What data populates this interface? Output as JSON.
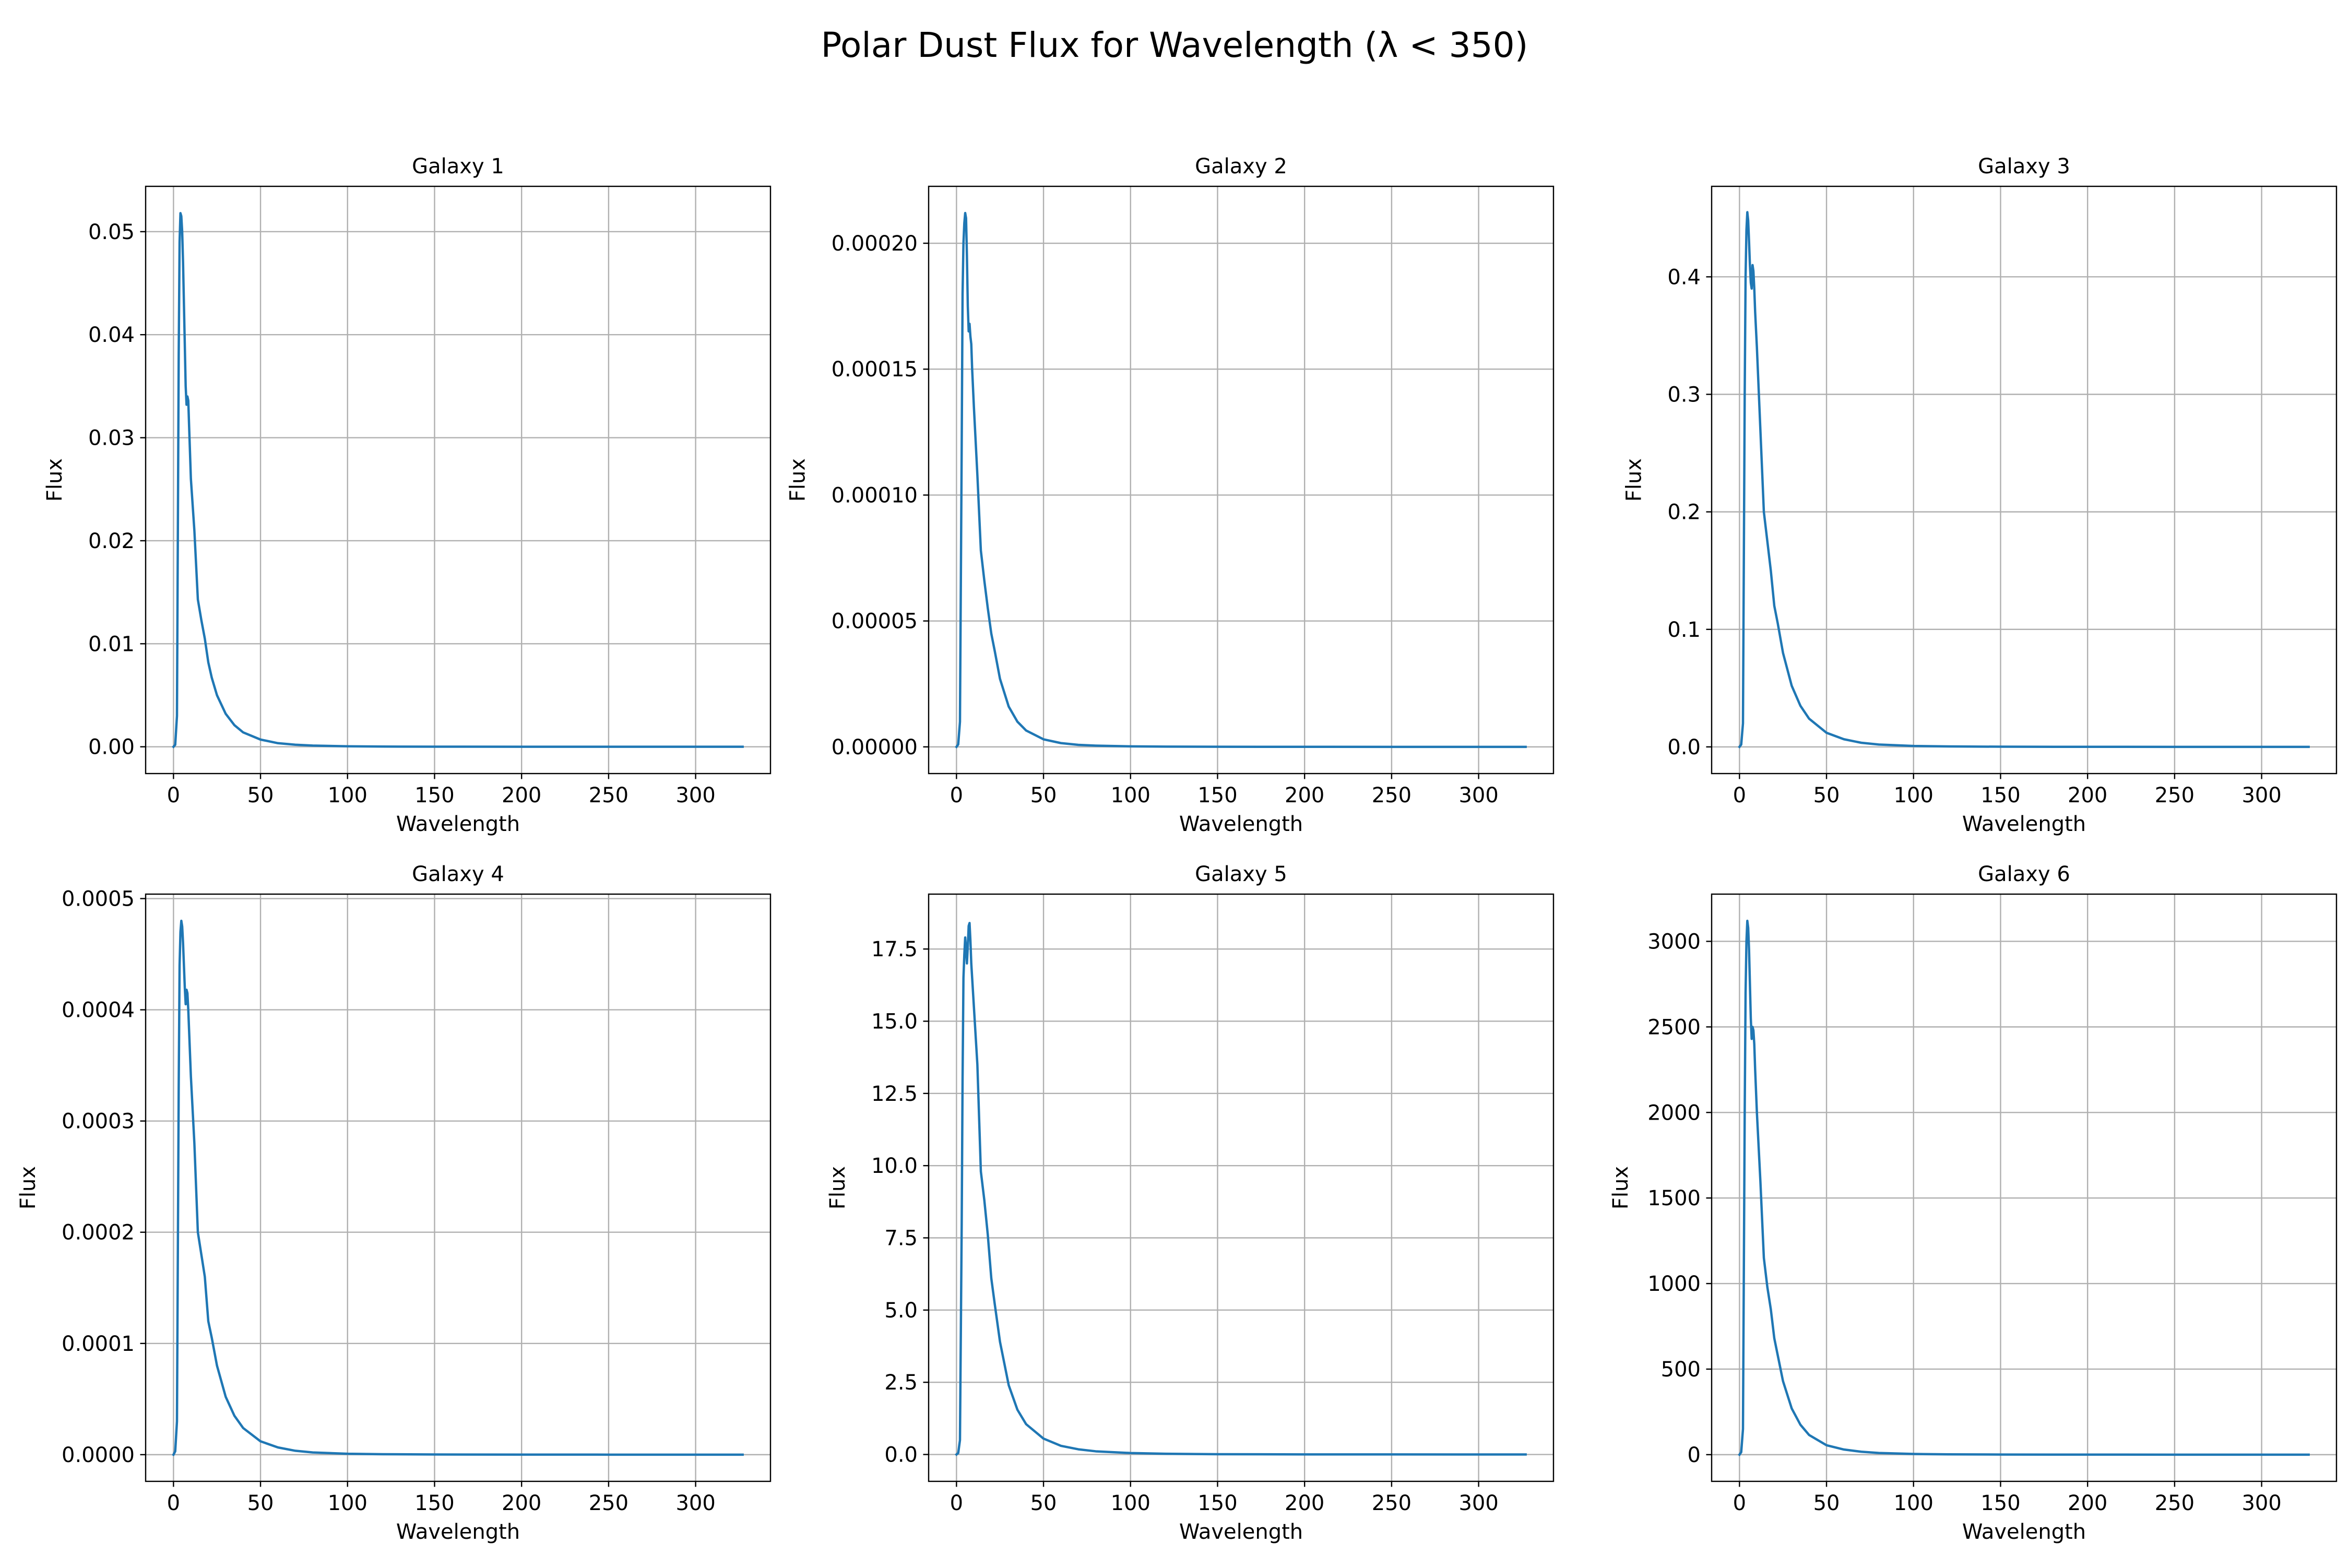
{
  "figure_title": "Polar Dust Flux for Wavelength (λ < 350)",
  "colors": {
    "line": "#1f77b4",
    "grid": "#b0b0b0",
    "axes": "#000000"
  },
  "chart_data": [
    {
      "type": "line",
      "title": "Galaxy 1",
      "xlabel": "Wavelength",
      "ylabel": "Flux",
      "grid": true,
      "xlim": [
        -16,
        343
      ],
      "ylim": [
        -0.0026,
        0.0544
      ],
      "xticks": [
        0,
        50,
        100,
        150,
        200,
        250,
        300
      ],
      "yticks": [
        0.0,
        0.01,
        0.02,
        0.03,
        0.04,
        0.05
      ],
      "ytick_labels": [
        "0.00",
        "0.01",
        "0.02",
        "0.03",
        "0.04",
        "0.05"
      ],
      "series": [
        {
          "x": [
            0,
            1,
            2,
            3,
            3.5,
            4,
            4.5,
            5,
            5.5,
            6,
            6.5,
            7,
            7.5,
            8,
            8.5,
            9,
            10,
            12,
            14,
            16,
            18,
            20,
            22,
            25,
            30,
            35,
            40,
            50,
            60,
            70,
            80,
            100,
            120,
            150,
            200,
            250,
            300,
            327
          ],
          "y": [
            0,
            0.0002,
            0.003,
            0.038,
            0.049,
            0.0518,
            0.0515,
            0.05,
            0.047,
            0.043,
            0.039,
            0.035,
            0.0332,
            0.034,
            0.0336,
            0.031,
            0.026,
            0.021,
            0.0143,
            0.0123,
            0.0105,
            0.0082,
            0.0067,
            0.005,
            0.0032,
            0.0021,
            0.0014,
            0.0007,
            0.00035,
            0.0002,
            0.00012,
            5e-05,
            2e-05,
            1e-05,
            4e-06,
            2e-06,
            1e-06,
            0
          ]
        }
      ]
    },
    {
      "type": "line",
      "title": "Galaxy 2",
      "xlabel": "Wavelength",
      "ylabel": "Flux",
      "grid": true,
      "xlim": [
        -16,
        343
      ],
      "ylim": [
        -1.06e-05,
        0.0002226
      ],
      "xticks": [
        0,
        50,
        100,
        150,
        200,
        250,
        300
      ],
      "yticks": [
        0.0,
        5e-05,
        0.0001,
        0.00015,
        0.0002
      ],
      "ytick_labels": [
        "0.00000",
        "0.00005",
        "0.00010",
        "0.00015",
        "0.00020"
      ],
      "series": [
        {
          "x": [
            0,
            1,
            2,
            3,
            3.5,
            4,
            4.5,
            5,
            5.5,
            6,
            6.5,
            7,
            7.5,
            8,
            8.5,
            9,
            10,
            12,
            14,
            16,
            18,
            20,
            22,
            25,
            30,
            35,
            40,
            50,
            60,
            70,
            80,
            100,
            120,
            150,
            200,
            250,
            300,
            327
          ],
          "y": [
            0,
            1e-06,
            1e-05,
            0.00012,
            0.00018,
            0.0002,
            0.000208,
            0.000212,
            0.00021,
            0.000195,
            0.000175,
            0.000165,
            0.000168,
            0.000163,
            0.00016,
            0.00015,
            0.000135,
            0.000108,
            7.8e-05,
            6.6e-05,
            5.5e-05,
            4.5e-05,
            3.8e-05,
            2.7e-05,
            1.6e-05,
            1e-05,
            6.5e-06,
            3e-06,
            1.5e-06,
            8e-07,
            5e-07,
            2e-07,
            1e-07,
            5e-08,
            2e-08,
            1e-08,
            0,
            0
          ]
        }
      ]
    },
    {
      "type": "line",
      "title": "Galaxy 3",
      "xlabel": "Wavelength",
      "ylabel": "Flux",
      "grid": true,
      "xlim": [
        -16,
        343
      ],
      "ylim": [
        -0.0227,
        0.477
      ],
      "xticks": [
        0,
        50,
        100,
        150,
        200,
        250,
        300
      ],
      "yticks": [
        0.0,
        0.1,
        0.2,
        0.3,
        0.4
      ],
      "ytick_labels": [
        "0.0",
        "0.1",
        "0.2",
        "0.3",
        "0.4"
      ],
      "series": [
        {
          "x": [
            0,
            1,
            2,
            3,
            3.5,
            4,
            4.5,
            5,
            5.5,
            6,
            6.5,
            7,
            7.5,
            8,
            8.5,
            9,
            10,
            12,
            14,
            16,
            18,
            20,
            22,
            25,
            30,
            35,
            40,
            50,
            60,
            70,
            80,
            100,
            120,
            150,
            200,
            250,
            300,
            327
          ],
          "y": [
            0,
            0.002,
            0.02,
            0.3,
            0.4,
            0.44,
            0.455,
            0.448,
            0.43,
            0.41,
            0.395,
            0.39,
            0.41,
            0.405,
            0.39,
            0.37,
            0.34,
            0.27,
            0.2,
            0.175,
            0.15,
            0.12,
            0.105,
            0.08,
            0.052,
            0.035,
            0.024,
            0.012,
            0.0065,
            0.0035,
            0.002,
            0.0008,
            0.0004,
            0.00015,
            5e-05,
            2e-05,
            1e-05,
            0
          ]
        }
      ]
    },
    {
      "type": "line",
      "title": "Galaxy 4",
      "xlabel": "Wavelength",
      "ylabel": "Flux",
      "grid": true,
      "xlim": [
        -16,
        343
      ],
      "ylim": [
        -2.4e-05,
        0.000504
      ],
      "xticks": [
        0,
        50,
        100,
        150,
        200,
        250,
        300
      ],
      "yticks": [
        0.0,
        0.0001,
        0.0002,
        0.0003,
        0.0004,
        0.0005
      ],
      "ytick_labels": [
        "0.0000",
        "0.0001",
        "0.0002",
        "0.0003",
        "0.0004",
        "0.0005"
      ],
      "series": [
        {
          "x": [
            0,
            1,
            2,
            3,
            3.5,
            4,
            4.5,
            5,
            5.5,
            6,
            6.5,
            7,
            7.5,
            8,
            8.5,
            9,
            10,
            12,
            14,
            16,
            18,
            20,
            22,
            25,
            30,
            35,
            40,
            50,
            60,
            70,
            80,
            100,
            120,
            150,
            200,
            250,
            300,
            327
          ],
          "y": [
            0,
            3e-06,
            3e-05,
            0.00033,
            0.00044,
            0.00047,
            0.00048,
            0.000475,
            0.00046,
            0.00044,
            0.00042,
            0.000405,
            0.000418,
            0.000415,
            0.0004,
            0.00038,
            0.00034,
            0.00028,
            0.0002,
            0.00018,
            0.00016,
            0.00012,
            0.000105,
            8e-05,
            5.2e-05,
            3.5e-05,
            2.4e-05,
            1.2e-05,
            6.5e-06,
            3.5e-06,
            2e-06,
            8e-07,
            4e-07,
            1.5e-07,
            5e-08,
            2e-08,
            1e-08,
            0
          ]
        }
      ]
    },
    {
      "type": "line",
      "title": "Galaxy 5",
      "xlabel": "Wavelength",
      "ylabel": "Flux",
      "grid": true,
      "xlim": [
        -16,
        343
      ],
      "ylim": [
        -0.93,
        19.4
      ],
      "xticks": [
        0,
        50,
        100,
        150,
        200,
        250,
        300
      ],
      "yticks": [
        0.0,
        2.5,
        5.0,
        7.5,
        10.0,
        12.5,
        15.0,
        17.5
      ],
      "ytick_labels": [
        "0.0",
        "2.5",
        "5.0",
        "7.5",
        "10.0",
        "12.5",
        "15.0",
        "17.5"
      ],
      "series": [
        {
          "x": [
            0,
            1,
            2,
            3,
            3.5,
            4,
            4.5,
            5,
            5.5,
            6,
            6.5,
            7,
            7.5,
            8,
            8.5,
            9,
            10,
            12,
            14,
            16,
            18,
            20,
            22,
            25,
            30,
            35,
            40,
            50,
            60,
            70,
            80,
            100,
            120,
            150,
            200,
            250,
            300,
            327
          ],
          "y": [
            0,
            0.05,
            0.5,
            8.0,
            13.0,
            16.5,
            17.3,
            17.9,
            17.5,
            17.0,
            17.6,
            18.3,
            18.4,
            17.8,
            17.0,
            16.5,
            15.5,
            13.5,
            9.8,
            8.8,
            7.6,
            6.1,
            5.2,
            3.9,
            2.4,
            1.55,
            1.05,
            0.55,
            0.3,
            0.18,
            0.11,
            0.05,
            0.025,
            0.01,
            0.004,
            0.002,
            0.001,
            0
          ]
        }
      ]
    },
    {
      "type": "line",
      "title": "Galaxy 6",
      "xlabel": "Wavelength",
      "ylabel": "Flux",
      "grid": true,
      "xlim": [
        -16,
        343
      ],
      "ylim": [
        -156,
        3276
      ],
      "xticks": [
        0,
        50,
        100,
        150,
        200,
        250,
        300
      ],
      "yticks": [
        0,
        500,
        1000,
        1500,
        2000,
        2500,
        3000
      ],
      "ytick_labels": [
        "0",
        "500",
        "1000",
        "1500",
        "2000",
        "2500",
        "3000"
      ],
      "series": [
        {
          "x": [
            0,
            1,
            2,
            3,
            3.5,
            4,
            4.5,
            5,
            5.5,
            6,
            6.5,
            7,
            7.5,
            8,
            8.5,
            9,
            10,
            12,
            14,
            16,
            18,
            20,
            22,
            25,
            30,
            35,
            40,
            50,
            60,
            70,
            80,
            100,
            120,
            150,
            200,
            250,
            300,
            327
          ],
          "y": [
            0,
            15,
            150,
            2000,
            2700,
            3000,
            3120,
            3080,
            2950,
            2750,
            2550,
            2430,
            2500,
            2480,
            2400,
            2250,
            2000,
            1600,
            1150,
            980,
            850,
            680,
            580,
            430,
            270,
            175,
            115,
            55,
            30,
            17,
            10,
            4,
            2,
            0.8,
            0.3,
            0.1,
            0.05,
            0
          ]
        }
      ]
    }
  ]
}
